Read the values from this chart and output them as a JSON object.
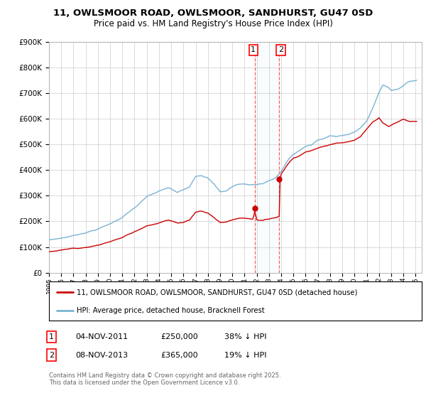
{
  "title": "11, OWLSMOOR ROAD, OWLSMOOR, SANDHURST, GU47 0SD",
  "subtitle": "Price paid vs. HM Land Registry's House Price Index (HPI)",
  "ylim": [
    0,
    900000
  ],
  "yticks": [
    0,
    100000,
    200000,
    300000,
    400000,
    500000,
    600000,
    700000,
    800000,
    900000
  ],
  "hpi_color": "#7ab3d4",
  "price_color": "#cc0000",
  "legend_label_price": "11, OWLSMOOR ROAD, OWLSMOOR, SANDHURST, GU47 0SD (detached house)",
  "legend_label_hpi": "HPI: Average price, detached house, Bracknell Forest",
  "sale1_date": "04-NOV-2011",
  "sale1_price": 250000,
  "sale1_pct": "38% ↓ HPI",
  "sale2_date": "08-NOV-2013",
  "sale2_price": 365000,
  "sale2_pct": "19% ↓ HPI",
  "footnote": "Contains HM Land Registry data © Crown copyright and database right 2025.\nThis data is licensed under the Open Government Licence v3.0.",
  "background_color": "#ffffff",
  "grid_color": "#cccccc",
  "sale1_x": 2011.84,
  "sale2_x": 2013.85
}
